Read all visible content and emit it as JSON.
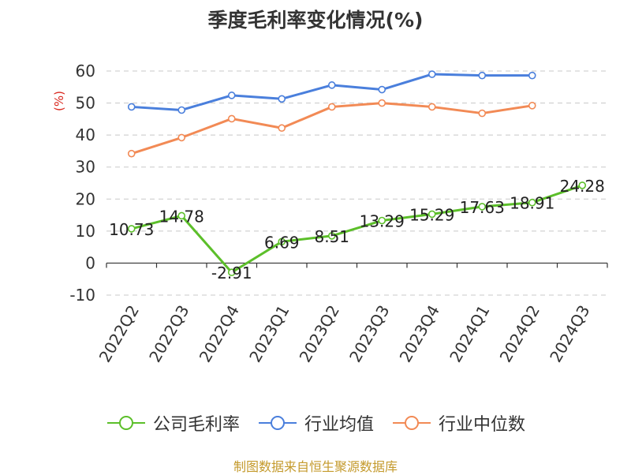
{
  "title": "季度毛利率变化情况(%)",
  "source": "制图数据来自恒生聚源数据库",
  "chart_data": {
    "type": "line",
    "title": "季度毛利率变化情况(%)",
    "xlabel": "",
    "ylabel": "(%)",
    "ylim": [
      -10,
      60
    ],
    "yticks": [
      -10,
      0,
      10,
      20,
      30,
      40,
      50,
      60
    ],
    "categories": [
      "2022Q2",
      "2022Q3",
      "2022Q4",
      "2023Q1",
      "2023Q2",
      "2023Q3",
      "2023Q4",
      "2024Q1",
      "2024Q2",
      "2024Q3"
    ],
    "grid": true,
    "legend_position": "bottom",
    "series": [
      {
        "name": "公司毛利率",
        "color": "#5cbf2a",
        "values": [
          10.73,
          14.78,
          -2.91,
          6.69,
          8.51,
          13.29,
          15.29,
          17.63,
          18.91,
          24.28
        ],
        "labels": [
          "10.73",
          "14.78",
          "-2.91",
          "6.69",
          "8.51",
          "13.29",
          "15.29",
          "17.63",
          "18.91",
          "24.28"
        ]
      },
      {
        "name": "行业均值",
        "color": "#4a7fdc",
        "values": [
          48.8,
          47.8,
          52.4,
          51.3,
          55.6,
          54.2,
          59.0,
          58.6,
          58.6,
          null
        ]
      },
      {
        "name": "行业中位数",
        "color": "#f28a55",
        "values": [
          34.2,
          39.2,
          45.1,
          42.2,
          48.8,
          50.0,
          48.8,
          46.8,
          49.2,
          null
        ]
      }
    ]
  }
}
